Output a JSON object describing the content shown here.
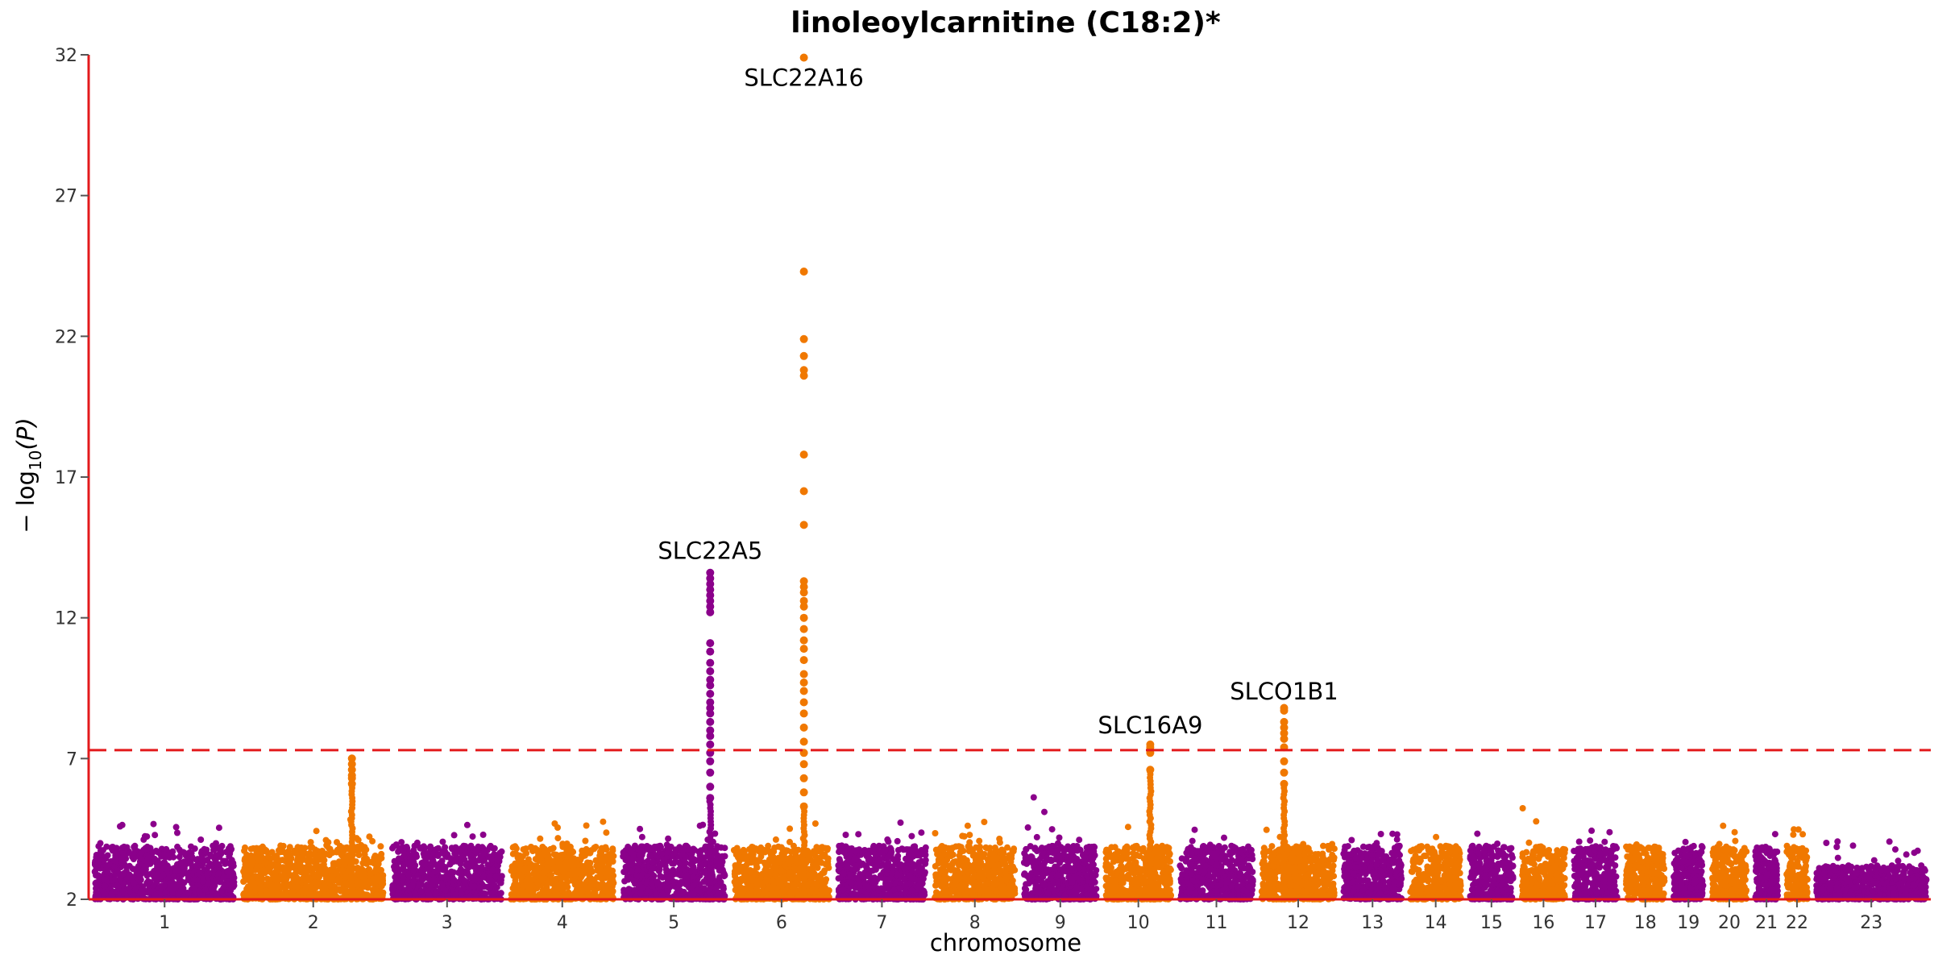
{
  "chart_data": {
    "type": "scatter",
    "subtype": "manhattan",
    "title": "linoleoylcarnitine (C18:2)*",
    "xlabel": "chromosome",
    "ylabel_main": "− log",
    "ylabel_sub": "10",
    "ylabel_tail": "(P)",
    "ylim": [
      2,
      32
    ],
    "yticks": [
      2,
      7,
      12,
      17,
      22,
      27,
      32
    ],
    "grid": false,
    "colors": {
      "odd": "#8B008B",
      "even": "#F07800",
      "threshold": "#E31A1C",
      "axis": "#E31A1C"
    },
    "threshold": 7.3,
    "chromosomes": [
      {
        "label": "1",
        "start": 0,
        "end": 1.0
      },
      {
        "label": "2",
        "start": 1.0,
        "end": 2.0
      },
      {
        "label": "3",
        "start": 2.0,
        "end": 2.8
      },
      {
        "label": "4",
        "start": 2.8,
        "end": 3.55
      },
      {
        "label": "5",
        "start": 3.55,
        "end": 4.3
      },
      {
        "label": "6",
        "start": 4.3,
        "end": 5.0
      },
      {
        "label": "7",
        "start": 5.0,
        "end": 5.65
      },
      {
        "label": "8",
        "start": 5.65,
        "end": 6.25
      },
      {
        "label": "9",
        "start": 6.25,
        "end": 6.8
      },
      {
        "label": "10",
        "start": 6.8,
        "end": 7.3
      },
      {
        "label": "11",
        "start": 7.3,
        "end": 7.85
      },
      {
        "label": "12",
        "start": 7.85,
        "end": 8.4
      },
      {
        "label": "13",
        "start": 8.4,
        "end": 8.85
      },
      {
        "label": "14",
        "start": 8.85,
        "end": 9.25
      },
      {
        "label": "15",
        "start": 9.25,
        "end": 9.6
      },
      {
        "label": "16",
        "start": 9.6,
        "end": 9.95
      },
      {
        "label": "17",
        "start": 9.95,
        "end": 10.3
      },
      {
        "label": "18",
        "start": 10.3,
        "end": 10.62
      },
      {
        "label": "19",
        "start": 10.62,
        "end": 10.88
      },
      {
        "label": "20",
        "start": 10.88,
        "end": 11.17
      },
      {
        "label": "21",
        "start": 11.17,
        "end": 11.38
      },
      {
        "label": "22",
        "start": 11.38,
        "end": 11.58
      },
      {
        "label": "23",
        "start": 11.58,
        "end": 12.38
      }
    ],
    "peaks": [
      {
        "chrom": "2",
        "pos": 1.76,
        "values": [
          7.0,
          6.8,
          6.6,
          6.4,
          6.3,
          6.1
        ]
      },
      {
        "chrom": "5",
        "pos": 4.17,
        "values": [
          13.6,
          13.4,
          13.2,
          13.0,
          12.8,
          12.6,
          12.4,
          12.2,
          11.1,
          10.8,
          10.4,
          10.1,
          9.8,
          9.6,
          9.3,
          9.0,
          8.8,
          8.6,
          8.3,
          8.0,
          7.8,
          7.5,
          7.2,
          6.9,
          6.5,
          6.0,
          5.6
        ]
      },
      {
        "chrom": "6",
        "pos": 4.8,
        "values": [
          31.9,
          24.3,
          21.9,
          21.3,
          20.8,
          20.6,
          17.8,
          16.5,
          15.3,
          13.3,
          13.1,
          12.9,
          12.6,
          12.4,
          12.0,
          11.6,
          11.2,
          10.9,
          10.5,
          10.0,
          9.7,
          9.4,
          9.0,
          8.6,
          8.1,
          7.6,
          7.2,
          6.8,
          6.3,
          5.8,
          5.3
        ]
      },
      {
        "chrom": "10",
        "pos": 7.13,
        "values": [
          7.5,
          7.4,
          7.2,
          6.6
        ]
      },
      {
        "chrom": "12",
        "pos": 8.03,
        "values": [
          8.8,
          8.7,
          8.3,
          8.1,
          7.9,
          7.7,
          7.4,
          6.9,
          6.5,
          6.1
        ]
      }
    ],
    "annotations": [
      {
        "text": "SLC22A16",
        "chrom": "6",
        "pos": 4.8,
        "y": 30.9
      },
      {
        "text": "SLC22A5",
        "chrom": "5",
        "pos": 4.17,
        "y": 14.1
      },
      {
        "text": "SLC16A9",
        "chrom": "10",
        "pos": 7.13,
        "y": 7.9
      },
      {
        "text": "SLCO1B1",
        "chrom": "12",
        "pos": 8.03,
        "y": 9.1
      }
    ]
  }
}
